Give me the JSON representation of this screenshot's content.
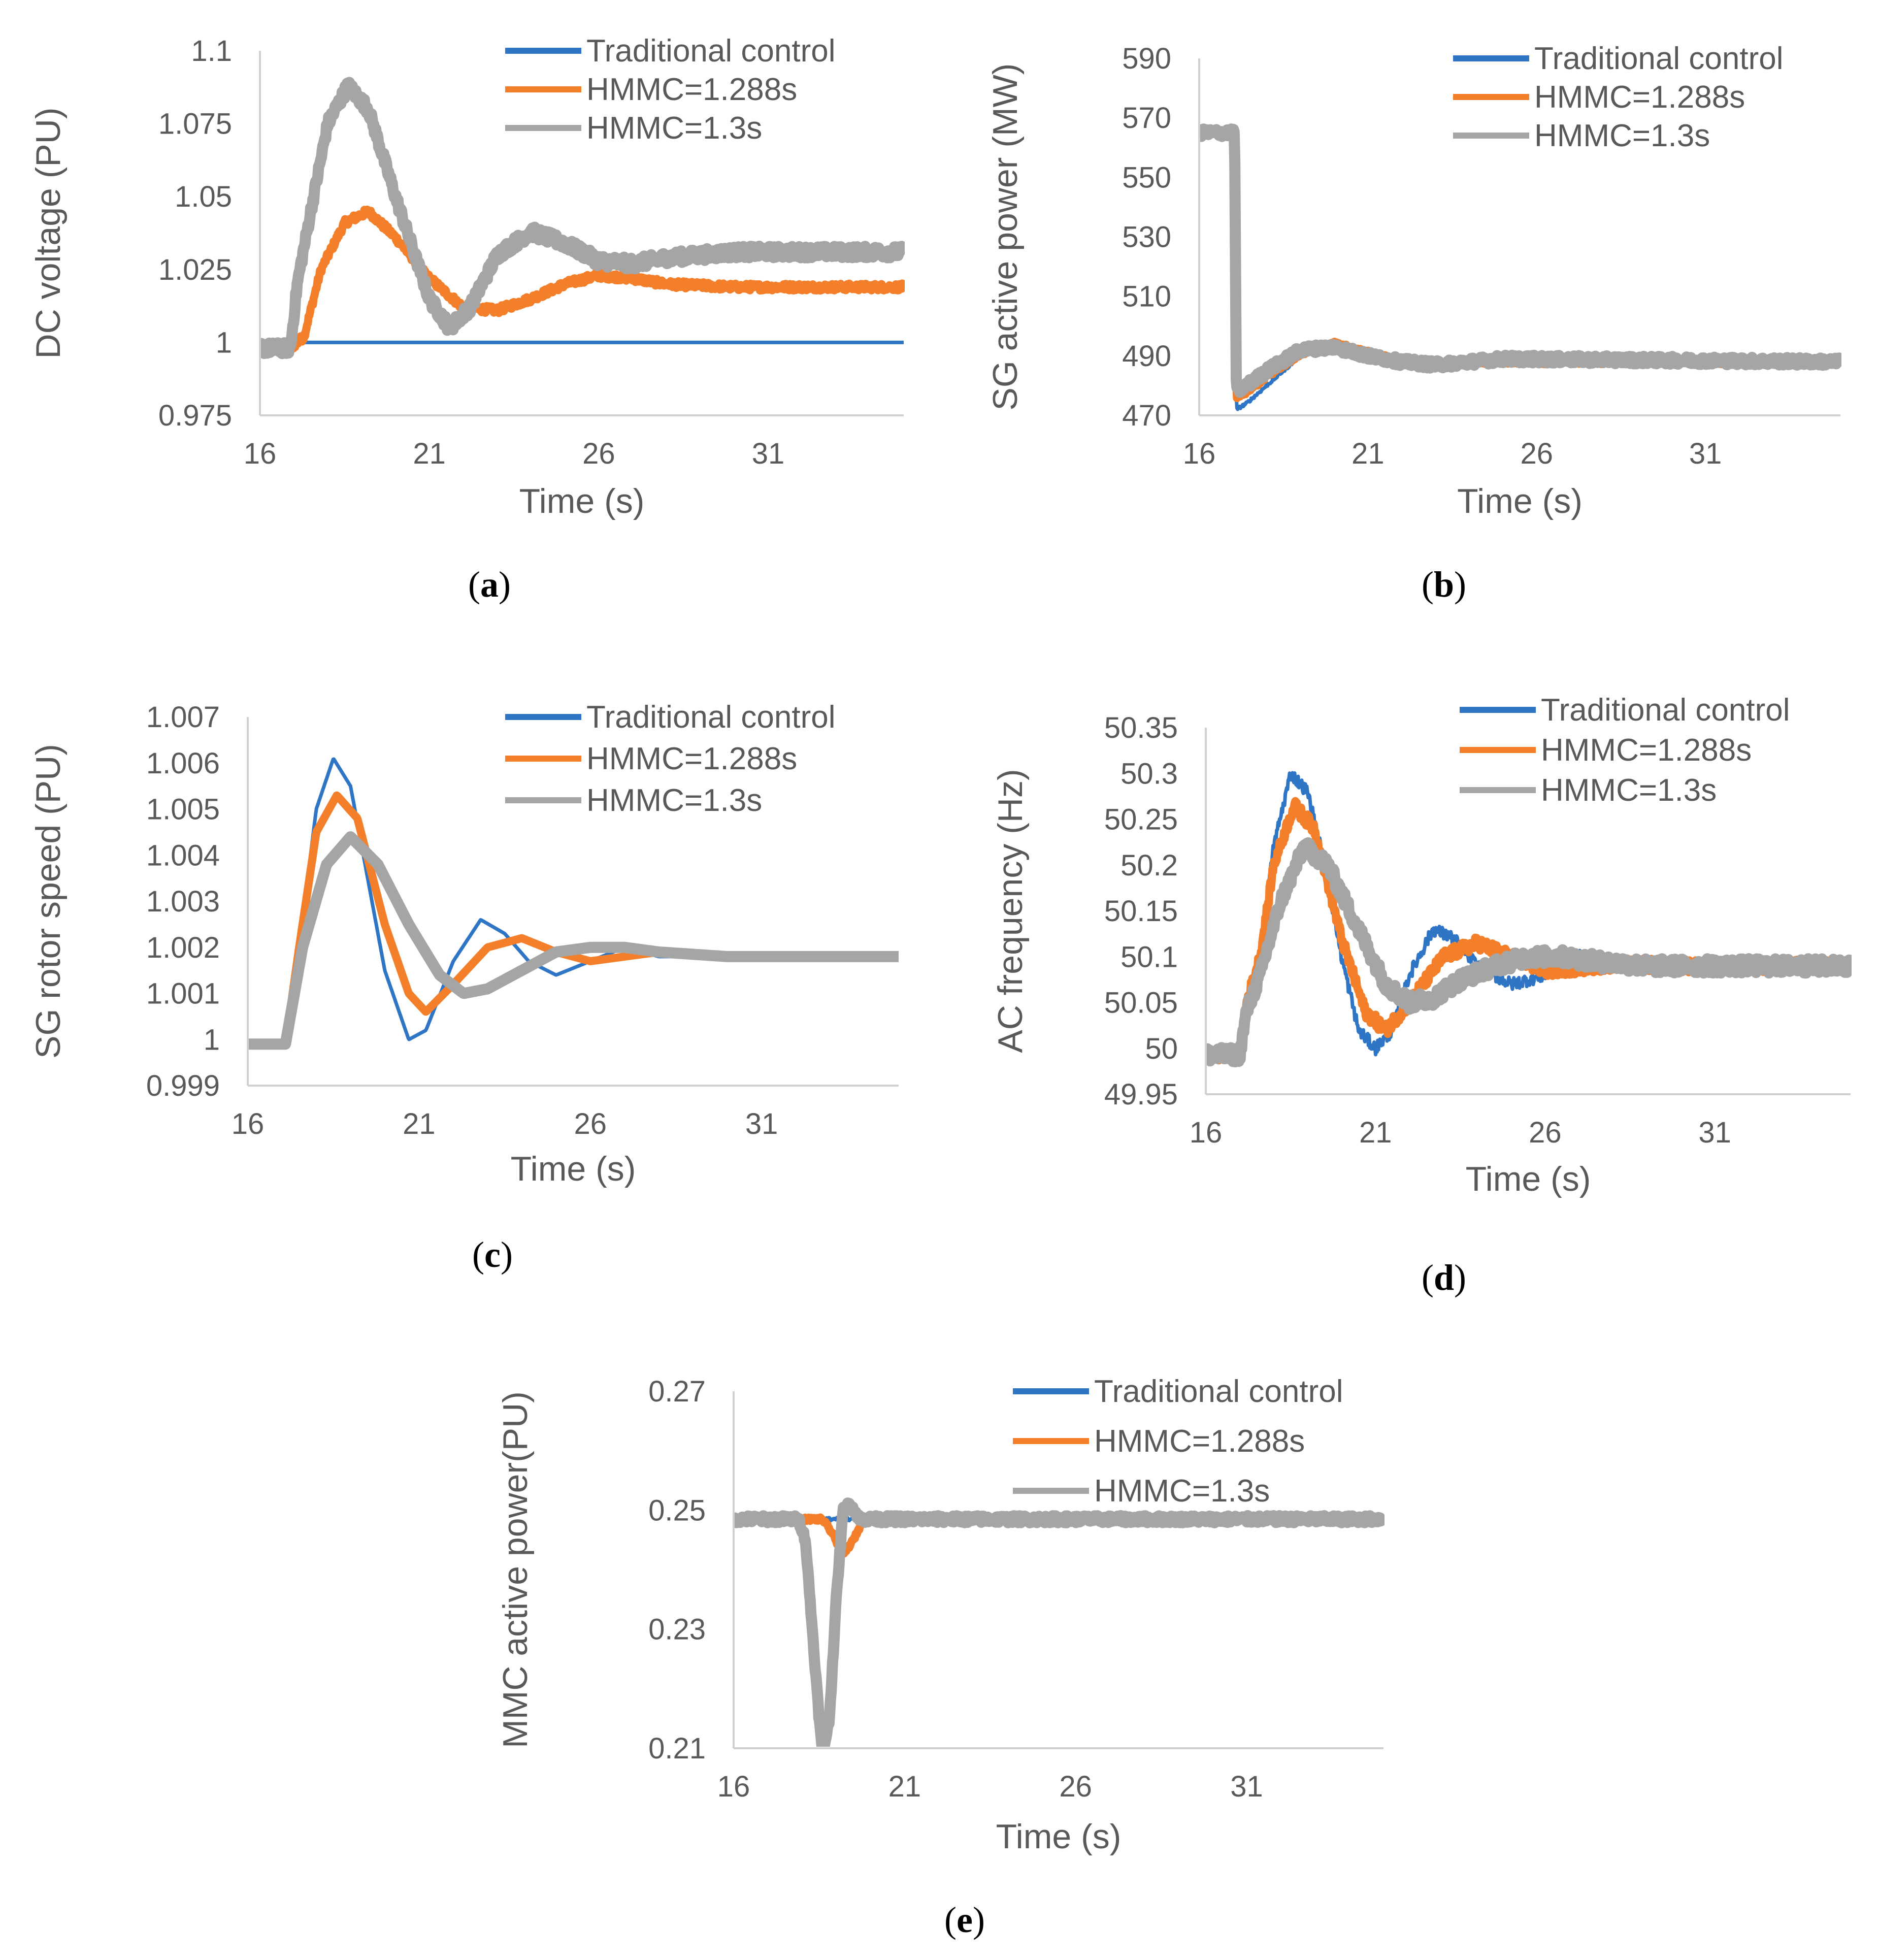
{
  "colors": {
    "traditional": "#2e75c6",
    "hmmc1288": "#f47f2a",
    "hmmc13": "#a5a5a5",
    "axis": "#d0d0d0",
    "text": "#595959"
  },
  "legend": [
    "Traditional control",
    "HMMC=1.288s",
    "HMMC=1.3s"
  ],
  "chart_data": [
    {
      "id": "a",
      "panel_label": "a",
      "type": "line",
      "ylabel": "DC voltage (PU)",
      "xlabel": "Time (s)",
      "xlim": [
        16,
        35
      ],
      "ylim": [
        0.975,
        1.1
      ],
      "xticks": [
        "16",
        "21",
        "26",
        "31"
      ],
      "yticks": [
        "0.975",
        "1",
        "1.025",
        "1.05",
        "1.075",
        "1.1"
      ],
      "legend": [
        "Traditional control",
        "HMMC=1.288s",
        " HMMC=1.3s"
      ],
      "series": [
        {
          "name": "Traditional control",
          "noise": 0,
          "points": [
            [
              16,
              0.998
            ],
            [
              16.9,
              0.998
            ],
            [
              17.2,
              1.0
            ],
            [
              35,
              1.0
            ]
          ]
        },
        {
          "name": "HMMC=1.288s",
          "noise": 0.0012,
          "points": [
            [
              16,
              0.998
            ],
            [
              16.9,
              0.998
            ],
            [
              17.3,
              1.002
            ],
            [
              17.8,
              1.025
            ],
            [
              18.5,
              1.041
            ],
            [
              19.2,
              1.045
            ],
            [
              20,
              1.036
            ],
            [
              21,
              1.022
            ],
            [
              22,
              1.012
            ],
            [
              23,
              1.011
            ],
            [
              24,
              1.015
            ],
            [
              25,
              1.02
            ],
            [
              26,
              1.023
            ],
            [
              27,
              1.022
            ],
            [
              28,
              1.02
            ],
            [
              30,
              1.019
            ],
            [
              35,
              1.019
            ]
          ]
        },
        {
          "name": "HMMC=1.3s",
          "noise": 0.002,
          "points": [
            [
              16,
              0.998
            ],
            [
              16.9,
              0.998
            ],
            [
              17.1,
              1.02
            ],
            [
              17.5,
              1.045
            ],
            [
              18,
              1.075
            ],
            [
              18.6,
              1.088
            ],
            [
              19.2,
              1.08
            ],
            [
              20,
              1.05
            ],
            [
              21,
              1.015
            ],
            [
              21.6,
              1.005
            ],
            [
              22.2,
              1.012
            ],
            [
              23,
              1.03
            ],
            [
              24,
              1.038
            ],
            [
              25,
              1.034
            ],
            [
              26,
              1.028
            ],
            [
              27,
              1.027
            ],
            [
              28,
              1.029
            ],
            [
              30,
              1.031
            ],
            [
              35,
              1.031
            ]
          ]
        }
      ]
    },
    {
      "id": "b",
      "panel_label": "b",
      "type": "line",
      "ylabel": "SG active power (MW)",
      "xlabel": "Time (s)",
      "xlim": [
        16,
        35
      ],
      "ylim": [
        470,
        590
      ],
      "xticks": [
        "16",
        "21",
        "26",
        "31"
      ],
      "yticks": [
        "470",
        "490",
        "510",
        "530",
        "550",
        "570",
        "590"
      ],
      "legend": [
        "Traditional control",
        "HMMC=1.288s",
        "HMMC=1.3s"
      ],
      "series": [
        {
          "name": "Traditional control",
          "noise": 0.5,
          "points": [
            [
              16,
              565
            ],
            [
              17.05,
              565
            ],
            [
              17.1,
              472
            ],
            [
              17.4,
              474
            ],
            [
              18,
              480
            ],
            [
              19,
              490
            ],
            [
              20,
              494
            ],
            [
              21,
              492
            ],
            [
              22,
              489
            ],
            [
              23,
              487
            ],
            [
              24,
              487
            ],
            [
              25,
              488
            ],
            [
              26,
              488
            ],
            [
              35,
              488
            ]
          ]
        },
        {
          "name": "HMMC=1.288s",
          "noise": 0.8,
          "points": [
            [
              16,
              565
            ],
            [
              17.05,
              565
            ],
            [
              17.1,
              476
            ],
            [
              17.4,
              478
            ],
            [
              18,
              483
            ],
            [
              19,
              491
            ],
            [
              20,
              494
            ],
            [
              21,
              491
            ],
            [
              22,
              488
            ],
            [
              23,
              487
            ],
            [
              24,
              488
            ],
            [
              25,
              488
            ],
            [
              35,
              488
            ]
          ]
        },
        {
          "name": "HMMC=1.3s",
          "noise": 1.3,
          "points": [
            [
              16,
              565
            ],
            [
              17.05,
              565
            ],
            [
              17.1,
              478
            ],
            [
              17.4,
              480
            ],
            [
              18,
              485
            ],
            [
              19,
              492
            ],
            [
              20,
              493
            ],
            [
              21,
              490
            ],
            [
              22,
              488
            ],
            [
              23,
              487
            ],
            [
              24,
              488
            ],
            [
              25,
              489
            ],
            [
              35,
              488
            ]
          ]
        }
      ]
    },
    {
      "id": "c",
      "panel_label": "c",
      "type": "line",
      "ylabel": "SG rotor speed (PU)",
      "xlabel": "Time (s)",
      "xlim": [
        16,
        35
      ],
      "ylim": [
        0.999,
        1.007
      ],
      "xticks": [
        "16",
        "21",
        "26",
        "31"
      ],
      "yticks": [
        "0.999",
        "1",
        "1.001",
        "1.002",
        "1.003",
        "1.004",
        "1.005",
        "1.006",
        "1.007"
      ],
      "legend": [
        "Traditional control",
        "HMMC=1.288s",
        "HMMC=1.3s"
      ],
      "series": [
        {
          "name": "Traditional control",
          "noise": 0,
          "points": [
            [
              16,
              0.9999
            ],
            [
              17.1,
              0.9999
            ],
            [
              17.5,
              1.002
            ],
            [
              18,
              1.005
            ],
            [
              18.5,
              1.0061
            ],
            [
              19,
              1.0055
            ],
            [
              19.5,
              1.0035
            ],
            [
              20,
              1.0015
            ],
            [
              20.7,
              1.0
            ],
            [
              21.2,
              1.0002
            ],
            [
              22,
              1.0017
            ],
            [
              22.8,
              1.0026
            ],
            [
              23.5,
              1.0023
            ],
            [
              24.2,
              1.0017
            ],
            [
              25,
              1.0014
            ],
            [
              26,
              1.0017
            ],
            [
              27,
              1.002
            ],
            [
              28,
              1.0018
            ],
            [
              30,
              1.0018
            ],
            [
              35,
              1.0018
            ]
          ]
        },
        {
          "name": "HMMC=1.288s",
          "noise": 0,
          "points": [
            [
              16,
              0.9999
            ],
            [
              17.1,
              0.9999
            ],
            [
              17.5,
              1.002
            ],
            [
              18,
              1.0045
            ],
            [
              18.6,
              1.0053
            ],
            [
              19.2,
              1.0048
            ],
            [
              20,
              1.0025
            ],
            [
              20.7,
              1.001
            ],
            [
              21.2,
              1.0006
            ],
            [
              22,
              1.0012
            ],
            [
              23,
              1.002
            ],
            [
              24,
              1.0022
            ],
            [
              25,
              1.0019
            ],
            [
              26,
              1.0017
            ],
            [
              27,
              1.0018
            ],
            [
              28,
              1.0019
            ],
            [
              30,
              1.0018
            ],
            [
              35,
              1.0018
            ]
          ]
        },
        {
          "name": "HMMC=1.3s",
          "noise": 0,
          "points": [
            [
              16,
              0.9999
            ],
            [
              17.1,
              0.9999
            ],
            [
              17.6,
              1.002
            ],
            [
              18.3,
              1.0038
            ],
            [
              19,
              1.0044
            ],
            [
              19.8,
              1.0038
            ],
            [
              20.7,
              1.0025
            ],
            [
              21.6,
              1.0014
            ],
            [
              22.3,
              1.001
            ],
            [
              23,
              1.0011
            ],
            [
              24,
              1.0015
            ],
            [
              25,
              1.0019
            ],
            [
              26,
              1.002
            ],
            [
              27,
              1.002
            ],
            [
              28,
              1.0019
            ],
            [
              30,
              1.0018
            ],
            [
              35,
              1.0018
            ]
          ]
        }
      ]
    },
    {
      "id": "d",
      "panel_label": "d",
      "type": "line",
      "ylabel": "AC frequency (Hz)",
      "xlabel": "Time (s)",
      "xlim": [
        16,
        35
      ],
      "ylim": [
        49.95,
        50.35
      ],
      "xticks": [
        "16",
        "21",
        "26",
        "31"
      ],
      "yticks": [
        "49.95",
        "50",
        "50.05",
        "50.1",
        "50.15",
        "50.2",
        "50.25",
        "50.3",
        "50.35"
      ],
      "legend": [
        "Traditional control",
        "HMMC=1.288s",
        "HMMC=1.3s"
      ],
      "series": [
        {
          "name": "Traditional control",
          "noise": 0.007,
          "points": [
            [
              16,
              49.993
            ],
            [
              17,
              49.993
            ],
            [
              17.2,
              50.05
            ],
            [
              17.6,
              50.1
            ],
            [
              18,
              50.22
            ],
            [
              18.5,
              50.3
            ],
            [
              19,
              50.28
            ],
            [
              19.5,
              50.2
            ],
            [
              20,
              50.1
            ],
            [
              20.5,
              50.02
            ],
            [
              21,
              50.0
            ],
            [
              21.5,
              50.02
            ],
            [
              22,
              50.08
            ],
            [
              22.7,
              50.13
            ],
            [
              23.3,
              50.12
            ],
            [
              24,
              50.09
            ],
            [
              25,
              50.07
            ],
            [
              26,
              50.08
            ],
            [
              27,
              50.1
            ],
            [
              28,
              50.09
            ],
            [
              30,
              50.09
            ],
            [
              35,
              50.09
            ]
          ]
        },
        {
          "name": "HMMC=1.288s",
          "noise": 0.007,
          "points": [
            [
              16,
              49.993
            ],
            [
              17,
              49.993
            ],
            [
              17.2,
              50.05
            ],
            [
              17.6,
              50.1
            ],
            [
              18,
              50.2
            ],
            [
              18.6,
              50.265
            ],
            [
              19.2,
              50.24
            ],
            [
              20,
              50.12
            ],
            [
              20.7,
              50.04
            ],
            [
              21.3,
              50.02
            ],
            [
              22,
              50.05
            ],
            [
              23,
              50.1
            ],
            [
              24,
              50.115
            ],
            [
              25,
              50.1
            ],
            [
              26,
              50.085
            ],
            [
              27,
              50.088
            ],
            [
              28,
              50.092
            ],
            [
              30,
              50.09
            ],
            [
              35,
              50.09
            ]
          ]
        },
        {
          "name": "HMMC=1.3s",
          "noise": 0.008,
          "points": [
            [
              16,
              49.993
            ],
            [
              17,
              49.993
            ],
            [
              17.2,
              50.04
            ],
            [
              17.6,
              50.08
            ],
            [
              18.2,
              50.16
            ],
            [
              18.9,
              50.22
            ],
            [
              19.6,
              50.2
            ],
            [
              20.5,
              50.13
            ],
            [
              21.3,
              50.07
            ],
            [
              22,
              50.05
            ],
            [
              22.7,
              50.055
            ],
            [
              23.5,
              50.075
            ],
            [
              24.5,
              50.09
            ],
            [
              25.5,
              50.1
            ],
            [
              26.5,
              50.1
            ],
            [
              27.5,
              50.095
            ],
            [
              29,
              50.09
            ],
            [
              35,
              50.09
            ]
          ]
        }
      ]
    },
    {
      "id": "e",
      "panel_label": "e",
      "type": "line",
      "ylabel": "MMC active power(PU)",
      "xlabel": "Time (s)",
      "xlim": [
        16,
        35
      ],
      "ylim": [
        0.21,
        0.27
      ],
      "xticks": [
        "16",
        "21",
        "26",
        "31"
      ],
      "yticks": [
        "0.21",
        "0.23",
        "0.25",
        "0.27"
      ],
      "legend": [
        "Traditional control",
        "HMMC=1.288s",
        "HMMC=1.3s"
      ],
      "series": [
        {
          "name": "Traditional control",
          "noise": 0.0003,
          "points": [
            [
              16,
              0.2485
            ],
            [
              35,
              0.2485
            ]
          ]
        },
        {
          "name": "HMMC=1.288s",
          "noise": 0.0003,
          "points": [
            [
              16,
              0.2485
            ],
            [
              18.6,
              0.2485
            ],
            [
              18.9,
              0.246
            ],
            [
              19.2,
              0.2425
            ],
            [
              19.5,
              0.245
            ],
            [
              19.8,
              0.2485
            ],
            [
              35,
              0.2485
            ]
          ]
        },
        {
          "name": "HMMC=1.3s",
          "noise": 0.0006,
          "points": [
            [
              16,
              0.2485
            ],
            [
              17.9,
              0.2485
            ],
            [
              18.1,
              0.245
            ],
            [
              18.3,
              0.23
            ],
            [
              18.5,
              0.215
            ],
            [
              18.6,
              0.209
            ],
            [
              18.8,
              0.215
            ],
            [
              19,
              0.235
            ],
            [
              19.2,
              0.25
            ],
            [
              19.4,
              0.251
            ],
            [
              19.7,
              0.2485
            ],
            [
              35,
              0.2485
            ]
          ]
        }
      ]
    }
  ]
}
